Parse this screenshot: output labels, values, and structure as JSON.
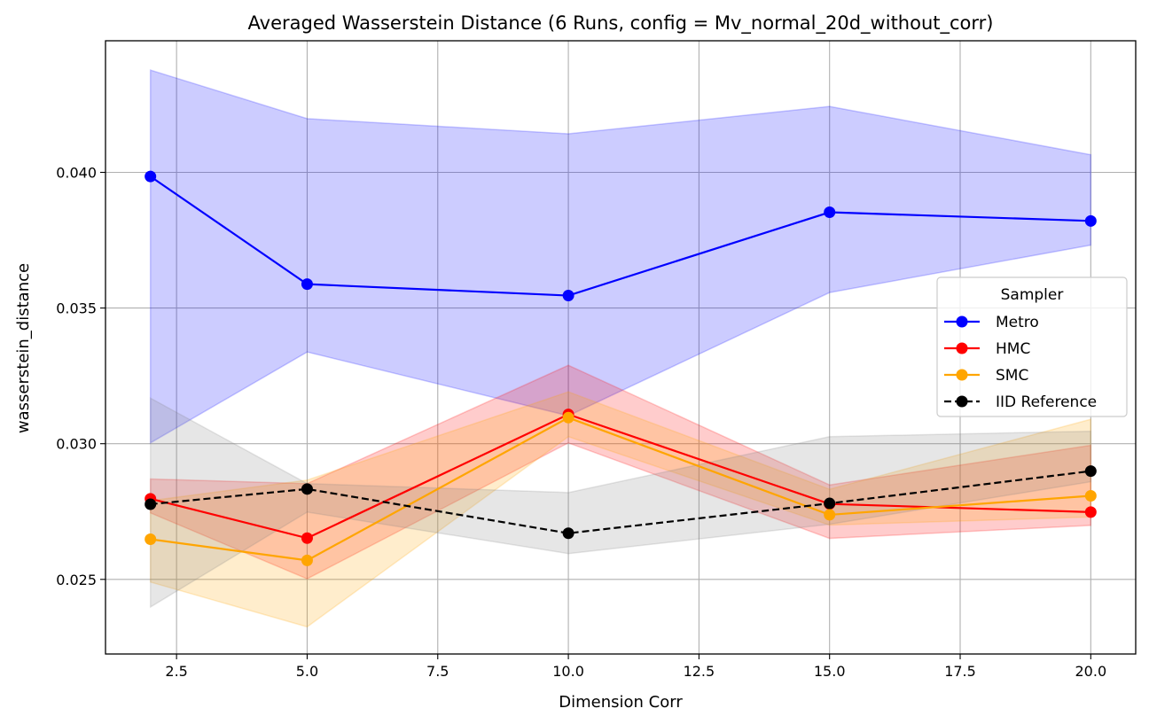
{
  "chart_data": {
    "type": "line",
    "title": "Averaged Wasserstein Distance (6 Runs, config = Mv_normal_20d_without_corr)",
    "xlabel": "Dimension Corr",
    "ylabel": "wasserstein_distance",
    "xlim": [
      1.14,
      20.86
    ],
    "ylim": [
      0.02225,
      0.04485
    ],
    "xticks": [
      2.5,
      5.0,
      7.5,
      10.0,
      12.5,
      15.0,
      17.5,
      20.0
    ],
    "xtick_labels": [
      "2.5",
      "5.0",
      "7.5",
      "10.0",
      "12.5",
      "15.0",
      "17.5",
      "20.0"
    ],
    "yticks": [
      0.025,
      0.03,
      0.035,
      0.04
    ],
    "ytick_labels": [
      "0.025",
      "0.030",
      "0.035",
      "0.040"
    ],
    "grid": true,
    "legend": {
      "title": "Sampler",
      "position": "center-right"
    },
    "x": [
      2,
      5,
      10,
      15,
      20
    ],
    "series": [
      {
        "name": "Metro",
        "color": "#0000ff",
        "band_color": "#0000ff",
        "linestyle": "solid",
        "values": [
          0.03985,
          0.03588,
          0.03546,
          0.03853,
          0.03821
        ],
        "lower": [
          0.03003,
          0.03338,
          0.03103,
          0.03557,
          0.03732
        ],
        "upper": [
          0.04377,
          0.04198,
          0.04142,
          0.04243,
          0.04065
        ]
      },
      {
        "name": "HMC",
        "color": "#ff0000",
        "band_color": "#ff0000",
        "linestyle": "solid",
        "values": [
          0.02797,
          0.02652,
          0.03108,
          0.02778,
          0.02748
        ],
        "lower": [
          0.02745,
          0.02502,
          0.03003,
          0.02651,
          0.02699
        ],
        "upper": [
          0.0287,
          0.02853,
          0.03289,
          0.02848,
          0.02994
        ]
      },
      {
        "name": "SMC",
        "color": "#ffa500",
        "band_color": "#ffa500",
        "linestyle": "solid",
        "values": [
          0.02648,
          0.0257,
          0.03096,
          0.02738,
          0.02808
        ],
        "lower": [
          0.0249,
          0.02325,
          0.03026,
          0.027,
          0.0273
        ],
        "upper": [
          0.0279,
          0.02866,
          0.03191,
          0.02832,
          0.0309
        ]
      },
      {
        "name": "IID Reference",
        "color": "#000000",
        "band_color": "#808080",
        "linestyle": "dashed",
        "values": [
          0.02777,
          0.02833,
          0.0267,
          0.0278,
          0.02899
        ],
        "lower": [
          0.02398,
          0.02748,
          0.02595,
          0.02703,
          0.0286
        ],
        "upper": [
          0.03168,
          0.02853,
          0.0282,
          0.03026,
          0.03046
        ]
      }
    ]
  }
}
